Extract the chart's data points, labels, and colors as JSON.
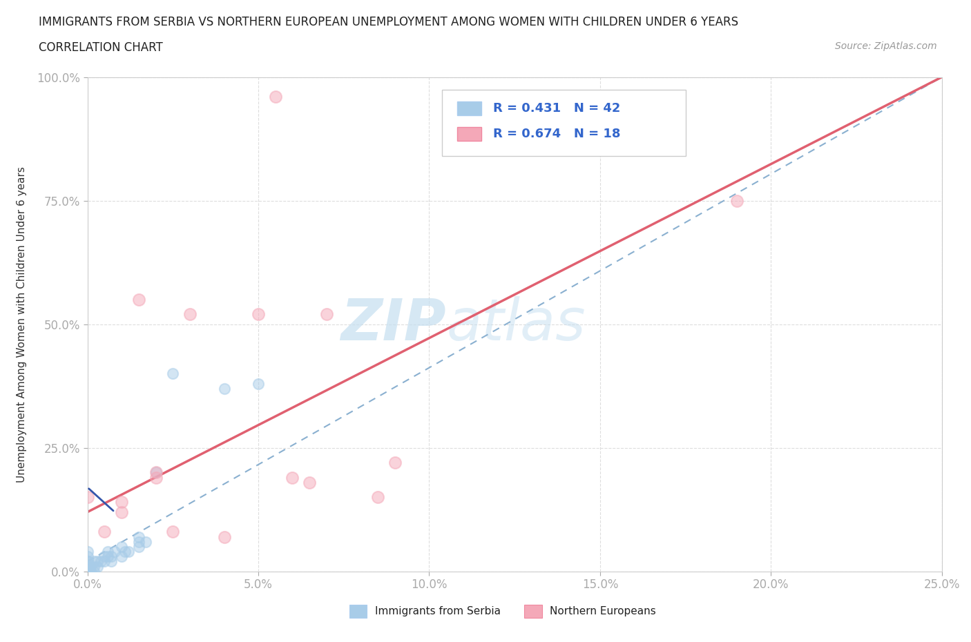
{
  "title": "IMMIGRANTS FROM SERBIA VS NORTHERN EUROPEAN UNEMPLOYMENT AMONG WOMEN WITH CHILDREN UNDER 6 YEARS",
  "subtitle": "CORRELATION CHART",
  "source": "Source: ZipAtlas.com",
  "ylabel": "Unemployment Among Women with Children Under 6 years",
  "xlim": [
    0,
    0.25
  ],
  "ylim": [
    0,
    1.0
  ],
  "xticks": [
    0.0,
    0.05,
    0.1,
    0.15,
    0.2,
    0.25
  ],
  "yticks": [
    0.0,
    0.25,
    0.5,
    0.75,
    1.0
  ],
  "xtick_labels": [
    "0.0%",
    "5.0%",
    "10.0%",
    "15.0%",
    "20.0%",
    "25.0%"
  ],
  "ytick_labels": [
    "0.0%",
    "25.0%",
    "50.0%",
    "75.0%",
    "100.0%"
  ],
  "serbia_color": "#a8cce8",
  "northern_color": "#f4a8b8",
  "serbia_R": 0.431,
  "serbia_N": 42,
  "northern_R": 0.674,
  "northern_N": 18,
  "trend_blue_color": "#8ab0d0",
  "trend_pink_color": "#e06070",
  "watermark_zip_color": "#c8dff0",
  "watermark_atlas_color": "#c8dff0",
  "serbia_x": [
    0.0,
    0.0,
    0.0,
    0.0,
    0.0,
    0.0,
    0.0,
    0.0,
    0.0,
    0.0,
    0.0,
    0.0,
    0.0,
    0.0,
    0.001,
    0.001,
    0.001,
    0.002,
    0.002,
    0.002,
    0.003,
    0.003,
    0.004,
    0.005,
    0.005,
    0.006,
    0.006,
    0.007,
    0.007,
    0.008,
    0.01,
    0.01,
    0.011,
    0.012,
    0.015,
    0.015,
    0.015,
    0.017,
    0.02,
    0.025,
    0.04,
    0.05
  ],
  "serbia_y": [
    0.0,
    0.0,
    0.0,
    0.0,
    0.0,
    0.0,
    0.0,
    0.01,
    0.01,
    0.01,
    0.02,
    0.02,
    0.03,
    0.04,
    0.0,
    0.0,
    0.01,
    0.0,
    0.01,
    0.02,
    0.01,
    0.02,
    0.02,
    0.02,
    0.03,
    0.03,
    0.04,
    0.02,
    0.03,
    0.04,
    0.03,
    0.05,
    0.04,
    0.04,
    0.05,
    0.06,
    0.07,
    0.06,
    0.2,
    0.4,
    0.37,
    0.38
  ],
  "northern_x": [
    0.0,
    0.005,
    0.01,
    0.01,
    0.015,
    0.02,
    0.02,
    0.025,
    0.03,
    0.04,
    0.05,
    0.055,
    0.06,
    0.065,
    0.07,
    0.085,
    0.09,
    0.19
  ],
  "northern_y": [
    0.15,
    0.08,
    0.12,
    0.14,
    0.55,
    0.19,
    0.2,
    0.08,
    0.52,
    0.07,
    0.52,
    0.96,
    0.19,
    0.18,
    0.52,
    0.15,
    0.22,
    0.75
  ],
  "pink_line_x0": 0.0,
  "pink_line_y0": 0.12,
  "pink_line_x1": 0.25,
  "pink_line_y1": 1.0,
  "blue_line_x0": 0.0,
  "blue_line_y0": 0.02,
  "blue_line_x1": 0.25,
  "blue_line_y1": 1.0
}
